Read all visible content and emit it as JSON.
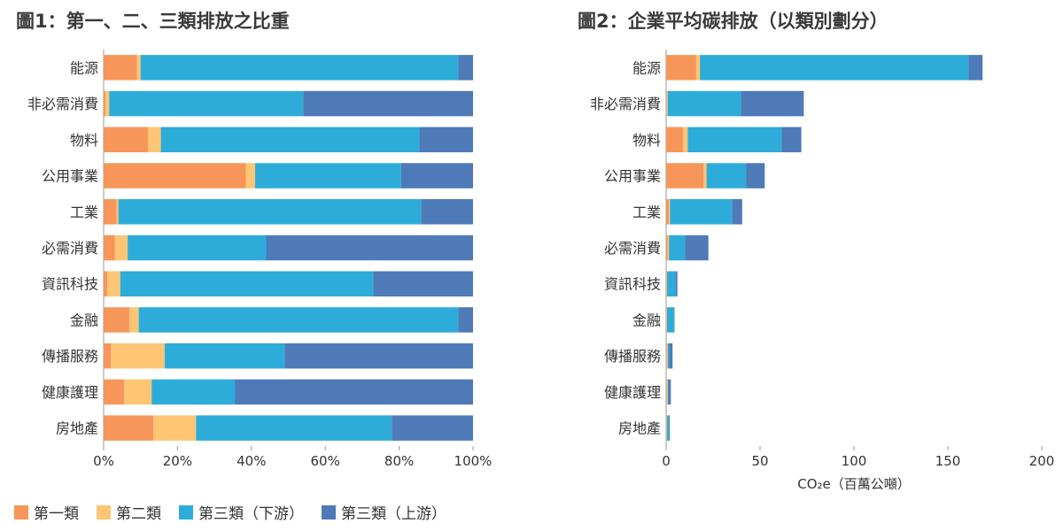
{
  "colors": {
    "scope1": "#F7965A",
    "scope2": "#FDC574",
    "scope3_down": "#2EACD9",
    "scope3_up": "#4E7AB8",
    "axis": "#999999",
    "text": "#333333"
  },
  "legend": [
    {
      "key": "scope1",
      "label": "第一類"
    },
    {
      "key": "scope2",
      "label": "第二類"
    },
    {
      "key": "scope3_down",
      "label": "第三類（下游）"
    },
    {
      "key": "scope3_up",
      "label": "第三類（上游）"
    }
  ],
  "chart_data": [
    {
      "type": "bar",
      "orientation": "horizontal",
      "stacked": true,
      "title": "圖1：第一、二、三類排放之比重",
      "categories": [
        "能源",
        "非必需消費",
        "物料",
        "公用事業",
        "工業",
        "必需消費",
        "資訊科技",
        "金融",
        "傳播服務",
        "健康護理",
        "房地產"
      ],
      "series": [
        {
          "name": "第一類",
          "key": "scope1",
          "values": [
            9,
            0.5,
            12,
            38.5,
            3.5,
            3,
            1,
            7,
            2,
            5.5,
            13.5
          ]
        },
        {
          "name": "第二類",
          "key": "scope2",
          "values": [
            1,
            1,
            3.5,
            2.5,
            0.5,
            3.5,
            3.5,
            2.5,
            14.5,
            7.5,
            11.5
          ]
        },
        {
          "name": "第三類（下游）",
          "key": "scope3_down",
          "values": [
            86,
            52.5,
            70,
            39.5,
            82,
            37.5,
            68.5,
            86.5,
            32.5,
            22.5,
            53
          ]
        },
        {
          "name": "第三類（上游）",
          "key": "scope3_up",
          "values": [
            4,
            46,
            14.5,
            19.5,
            14,
            56,
            27,
            4,
            51,
            64.5,
            22
          ]
        }
      ],
      "xlim": [
        0,
        100
      ],
      "xticks": [
        "0%",
        "20%",
        "40%",
        "60%",
        "80%",
        "100%"
      ],
      "xlabel": "",
      "ylabel": ""
    },
    {
      "type": "bar",
      "orientation": "horizontal",
      "stacked": true,
      "title": "圖2：企業平均碳排放（以類別劃分）",
      "categories": [
        "能源",
        "非必需消費",
        "物料",
        "公用事業",
        "工業",
        "必需消費",
        "資訊科技",
        "金融",
        "傳播服務",
        "健康護理",
        "房地產"
      ],
      "series": [
        {
          "name": "第一類",
          "key": "scope1",
          "values": [
            16,
            0.4,
            9,
            20,
            1.5,
            0.8,
            0.2,
            0.3,
            0.3,
            0.3,
            0.2
          ]
        },
        {
          "name": "第二類",
          "key": "scope2",
          "values": [
            2,
            0.4,
            2.5,
            1.5,
            0.5,
            0.7,
            0.3,
            0.2,
            0.5,
            0.5,
            0.3
          ]
        },
        {
          "name": "第三類（下游）",
          "key": "scope3_down",
          "values": [
            143,
            39,
            50,
            21,
            33,
            8.5,
            4.5,
            3.8,
            0.8,
            0.4,
            1
          ]
        },
        {
          "name": "第三類（上游）",
          "key": "scope3_up",
          "values": [
            7.5,
            33.5,
            10.5,
            10,
            5.5,
            12.5,
            1,
            0.2,
            1.8,
            1.3,
            0.5
          ]
        }
      ],
      "xlim": [
        0,
        200
      ],
      "xticks": [
        "0",
        "50",
        "100",
        "150",
        "200"
      ],
      "xlabel": "CO₂e（百萬公噸）",
      "ylabel": ""
    }
  ]
}
